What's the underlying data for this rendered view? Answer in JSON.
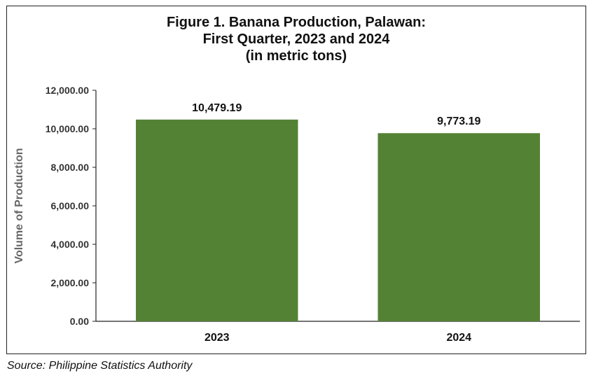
{
  "chart_data": {
    "type": "bar",
    "title_lines": [
      "Figure 1. Banana Production, Palawan:",
      "First Quarter, 2023 and 2024",
      "(in metric tons)"
    ],
    "categories": [
      "2023",
      "2024"
    ],
    "values": [
      10479.19,
      9773.19
    ],
    "value_labels": [
      "10,479.19",
      "9,773.19"
    ],
    "ylabel": "Volume of Production",
    "xlabel": "",
    "ylim": [
      0,
      12000
    ],
    "yticks": [
      0,
      2000,
      4000,
      6000,
      8000,
      10000,
      12000
    ],
    "ytick_labels": [
      "0.00",
      "2,000.00",
      "4,000.00",
      "6,000.00",
      "8,000.00",
      "10,000.00",
      "12,000.00"
    ],
    "grid": false,
    "legend": "none",
    "bar_color": "#548235"
  },
  "source": "Source: Philippine Statistics Authority"
}
